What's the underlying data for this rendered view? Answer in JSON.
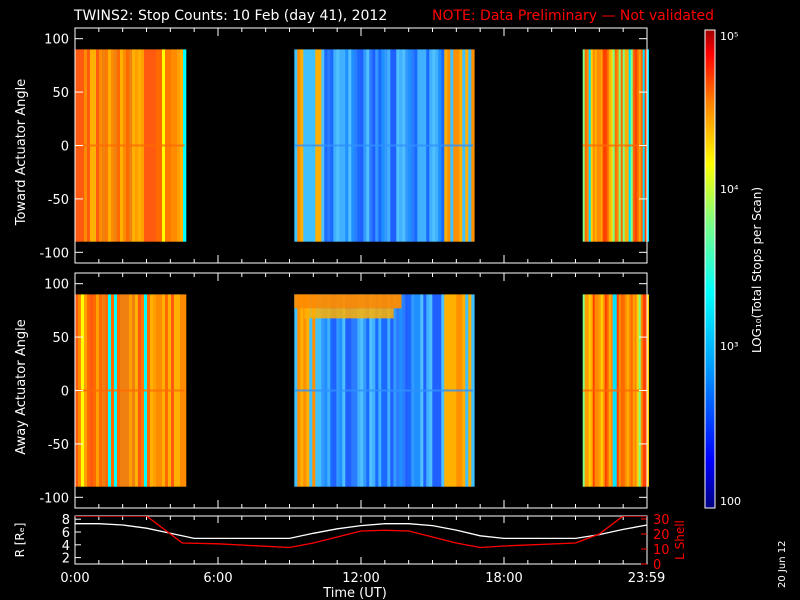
{
  "title_main": "TWINS2: Stop Counts: 10 Feb (day  41), 2012",
  "title_note": "NOTE: Data Preliminary — Not validated",
  "note_color": "#ff0000",
  "date_stamp": "20 Jun 12",
  "chart_data": [
    {
      "type": "heatmap",
      "ylabel": "Toward Actuator Angle",
      "ylim": [
        -110,
        110
      ],
      "yticks": [
        100,
        50,
        0,
        -50,
        -100
      ],
      "data_angle_range": [
        -90,
        90
      ],
      "time_blocks_ut_hours": [
        [
          0.0,
          4.6
        ],
        [
          9.2,
          16.7
        ],
        [
          21.3,
          24.0
        ]
      ],
      "dominant_level": [
        "orange-red",
        "blue",
        "mixed orange/yellow"
      ]
    },
    {
      "type": "heatmap",
      "ylabel": "Away Actuator Angle",
      "ylim": [
        -110,
        110
      ],
      "yticks": [
        100,
        50,
        0,
        -50,
        -100
      ],
      "data_angle_range": [
        -90,
        90
      ],
      "time_blocks_ut_hours": [
        [
          0.0,
          4.6
        ],
        [
          9.2,
          16.7
        ],
        [
          21.3,
          24.0
        ]
      ],
      "dominant_level": [
        "orange-red",
        "blue",
        "mixed orange/yellow"
      ]
    },
    {
      "type": "line",
      "xlabel": "Time (UT)",
      "xticks": [
        "0:00",
        "6:00",
        "12:00",
        "18:00",
        "23:59"
      ],
      "xtick_hours": [
        0,
        6,
        12,
        18,
        23.98
      ],
      "left_axis": {
        "label": "R [Rₑ]",
        "ticks": [
          8,
          6,
          4,
          2
        ],
        "ylim": [
          1,
          8.5
        ]
      },
      "right_axis": {
        "label": "L Shell",
        "ticks": [
          30,
          20,
          10,
          0
        ],
        "ylim": [
          0,
          32
        ],
        "color": "#ff0000"
      },
      "series": [
        {
          "axis": "left",
          "color": "#ffffff",
          "x": [
            0,
            1,
            2,
            3,
            4,
            5,
            6,
            8,
            9,
            10,
            11,
            12,
            13,
            14,
            15,
            16,
            17,
            18,
            19,
            20,
            21,
            22,
            23,
            24
          ],
          "y": [
            7.3,
            7.3,
            7.1,
            6.6,
            5.8,
            5.0,
            5.0,
            5.0,
            5.0,
            5.8,
            6.5,
            7.0,
            7.3,
            7.3,
            7.0,
            6.3,
            5.4,
            5.0,
            5.0,
            5.0,
            5.0,
            5.6,
            6.4,
            7.1
          ]
        },
        {
          "axis": "right",
          "color": "#ff0000",
          "x": [
            0,
            3.0,
            4.5,
            6,
            9,
            10,
            11,
            12,
            13,
            14,
            15,
            16,
            17,
            18,
            21,
            22,
            23,
            24
          ],
          "y": [
            32,
            32,
            14,
            13.5,
            11,
            14,
            18,
            22,
            22.5,
            22,
            18,
            14,
            11,
            12,
            14,
            20,
            32,
            32
          ]
        }
      ]
    },
    {
      "type": "colorbar",
      "label": "LOG₁₀(Total Stops per Scan)",
      "tick_labels": [
        "10⁵",
        "10⁴",
        "10³",
        "100"
      ],
      "range_log10": [
        2,
        5
      ],
      "colors": [
        "#000080",
        "#0000ff",
        "#00a0ff",
        "#00ffff",
        "#80ff80",
        "#ffff00",
        "#ff8000",
        "#ff0000",
        "#800000"
      ]
    }
  ]
}
